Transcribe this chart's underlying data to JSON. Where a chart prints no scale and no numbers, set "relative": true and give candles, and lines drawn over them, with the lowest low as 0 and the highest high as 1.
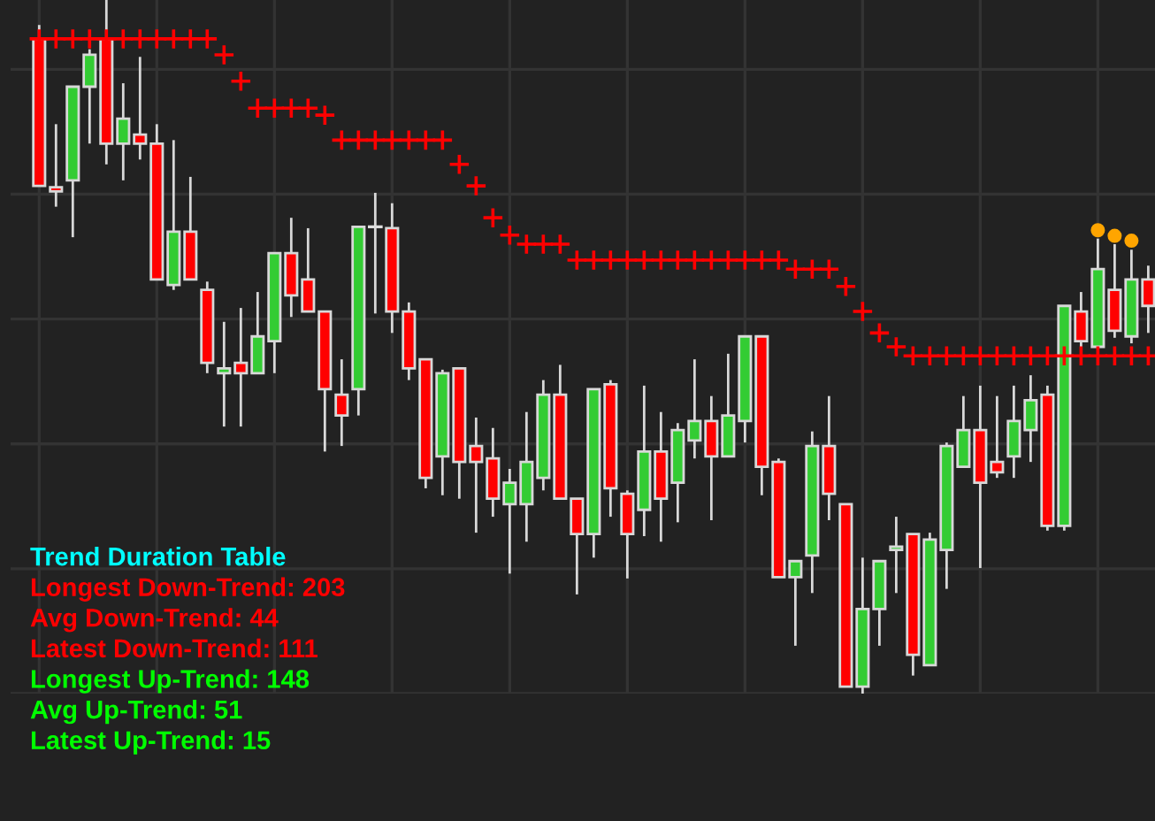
{
  "chart_data": {
    "type": "candlestick",
    "relative": true,
    "grid": true,
    "title": "Trend Duration Table",
    "categories": [
      null,
      null,
      null,
      null,
      null,
      null,
      null,
      null,
      null,
      null,
      null,
      null,
      null,
      null,
      null,
      null,
      null,
      null,
      null,
      null,
      null,
      null,
      null,
      null,
      null,
      null,
      null,
      null,
      null,
      null,
      null,
      null,
      null,
      null,
      null,
      null,
      null,
      null,
      null,
      null,
      null,
      null,
      null,
      null,
      null,
      null,
      null,
      null,
      null,
      null,
      null,
      null,
      null,
      null,
      null,
      null,
      null,
      null,
      null,
      null,
      null,
      null,
      null,
      null,
      null,
      null,
      null
    ],
    "ohlc": [
      [
        0.944,
        0.964,
        0.732,
        0.732
      ],
      [
        0.73,
        0.821,
        0.702,
        0.724
      ],
      [
        0.74,
        0.875,
        0.658,
        0.875
      ],
      [
        0.875,
        0.929,
        0.793,
        0.921
      ],
      [
        0.944,
        1,
        0.763,
        0.793
      ],
      [
        0.793,
        0.88,
        0.74,
        0.829
      ],
      [
        0.806,
        0.918,
        0.77,
        0.793
      ],
      [
        0.793,
        0.821,
        0.597,
        0.597
      ],
      [
        0.589,
        0.798,
        0.582,
        0.666
      ],
      [
        0.666,
        0.745,
        0.597,
        0.597
      ],
      [
        0.582,
        0.594,
        0.462,
        0.477
      ],
      [
        0.462,
        0.536,
        0.385,
        0.469
      ],
      [
        0.477,
        0.556,
        0.385,
        0.462
      ],
      [
        0.462,
        0.579,
        0.462,
        0.515
      ],
      [
        0.508,
        0.635,
        0.462,
        0.635
      ],
      [
        0.635,
        0.686,
        0.543,
        0.574
      ],
      [
        0.597,
        0.671,
        0.551,
        0.551
      ],
      [
        0.551,
        0.551,
        0.349,
        0.439
      ],
      [
        0.431,
        0.482,
        0.357,
        0.401
      ],
      [
        0.439,
        0.673,
        0.401,
        0.673
      ],
      [
        0.673,
        0.722,
        0.548,
        0.673
      ],
      [
        0.671,
        0.707,
        0.52,
        0.551
      ],
      [
        0.551,
        0.564,
        0.452,
        0.469
      ],
      [
        0.482,
        0.482,
        0.296,
        0.311
      ],
      [
        0.342,
        0.467,
        0.286,
        0.462
      ],
      [
        0.469,
        0.469,
        0.281,
        0.334
      ],
      [
        0.357,
        0.398,
        0.232,
        0.334
      ],
      [
        0.339,
        0.383,
        0.255,
        0.281
      ],
      [
        0.273,
        0.324,
        0.173,
        0.304
      ],
      [
        0.273,
        0.406,
        0.219,
        0.334
      ],
      [
        0.311,
        0.452,
        0.293,
        0.431
      ],
      [
        0.431,
        0.474,
        0.281,
        0.281
      ],
      [
        0.281,
        0.281,
        0.143,
        0.23
      ],
      [
        0.23,
        0.439,
        0.196,
        0.439
      ],
      [
        0.446,
        0.452,
        0.255,
        0.296
      ],
      [
        0.288,
        0.293,
        0.166,
        0.23
      ],
      [
        0.265,
        0.444,
        0.227,
        0.349
      ],
      [
        0.349,
        0.406,
        0.219,
        0.281
      ],
      [
        0.304,
        0.39,
        0.247,
        0.38
      ],
      [
        0.365,
        0.482,
        0.339,
        0.393
      ],
      [
        0.393,
        0.429,
        0.25,
        0.342
      ],
      [
        0.342,
        0.49,
        0.342,
        0.401
      ],
      [
        0.393,
        0.515,
        0.362,
        0.515
      ],
      [
        0.515,
        0.515,
        0.286,
        0.327
      ],
      [
        0.334,
        0.339,
        0.168,
        0.168
      ],
      [
        0.168,
        0.191,
        0.069,
        0.191
      ],
      [
        0.199,
        0.378,
        0.145,
        0.357
      ],
      [
        0.357,
        0.429,
        0.25,
        0.288
      ],
      [
        0.273,
        0.273,
        0.01,
        0.01
      ],
      [
        0.01,
        0.196,
        0,
        0.122
      ],
      [
        0.122,
        0.191,
        0.069,
        0.191
      ],
      [
        0.207,
        0.255,
        0.145,
        0.212
      ],
      [
        0.23,
        0.23,
        0.026,
        0.056
      ],
      [
        0.041,
        0.232,
        0.041,
        0.222
      ],
      [
        0.207,
        0.362,
        0.151,
        0.357
      ],
      [
        0.327,
        0.429,
        0.327,
        0.38
      ],
      [
        0.38,
        0.444,
        0.181,
        0.304
      ],
      [
        0.334,
        0.429,
        0.311,
        0.319
      ],
      [
        0.342,
        0.444,
        0.311,
        0.393
      ],
      [
        0.38,
        0.459,
        0.334,
        0.423
      ],
      [
        0.431,
        0.444,
        0.235,
        0.242
      ],
      [
        0.242,
        0.559,
        0.235,
        0.559
      ],
      [
        0.551,
        0.579,
        0.497,
        0.508
      ],
      [
        0.5,
        0.656,
        0.5,
        0.612
      ],
      [
        0.582,
        0.648,
        0.513,
        0.523
      ],
      [
        0.515,
        0.64,
        0.505,
        0.597
      ],
      [
        0.597,
        0.617,
        0.52,
        0.559
      ]
    ],
    "colors": [
      "#ff0000",
      "#ff0000",
      "#33cc33",
      "#33cc33",
      "#ff0000",
      "#33cc33",
      "#ff0000",
      "#ff0000",
      "#33cc33",
      "#ff0000",
      "#ff0000",
      "#33cc33",
      "#ff0000",
      "#33cc33",
      "#33cc33",
      "#ff0000",
      "#ff0000",
      "#ff0000",
      "#ff0000",
      "#33cc33",
      "#dddddd",
      "#ff0000",
      "#ff0000",
      "#ff0000",
      "#33cc33",
      "#ff0000",
      "#ff0000",
      "#ff0000",
      "#33cc33",
      "#33cc33",
      "#33cc33",
      "#ff0000",
      "#ff0000",
      "#33cc33",
      "#ff0000",
      "#ff0000",
      "#33cc33",
      "#ff0000",
      "#33cc33",
      "#33cc33",
      "#ff0000",
      "#33cc33",
      "#33cc33",
      "#ff0000",
      "#ff0000",
      "#33cc33",
      "#33cc33",
      "#ff0000",
      "#ff0000",
      "#33cc33",
      "#33cc33",
      "#33cc33",
      "#ff0000",
      "#33cc33",
      "#33cc33",
      "#33cc33",
      "#ff0000",
      "#ff0000",
      "#33cc33",
      "#33cc33",
      "#ff0000",
      "#33cc33",
      "#ff0000",
      "#33cc33",
      "#ff0000",
      "#33cc33",
      "#ff0000"
    ],
    "series": [
      {
        "type": "scatter",
        "marker": "cross",
        "color": "#ff0000",
        "values": [
          0.944,
          0.944,
          0.944,
          0.944,
          0.944,
          0.944,
          0.944,
          0.944,
          0.944,
          0.944,
          0.944,
          0.921,
          0.883,
          0.844,
          0.844,
          0.844,
          0.844,
          0.834,
          0.798,
          0.798,
          0.798,
          0.798,
          0.798,
          0.798,
          0.798,
          0.763,
          0.732,
          0.686,
          0.661,
          0.648,
          0.648,
          0.648,
          0.625,
          0.625,
          0.625,
          0.625,
          0.625,
          0.625,
          0.625,
          0.625,
          0.625,
          0.625,
          0.625,
          0.625,
          0.625,
          0.612,
          0.612,
          0.612,
          0.587,
          0.551,
          0.52,
          0.5,
          0.487,
          0.487,
          0.487,
          0.487,
          0.487,
          0.487,
          0.487,
          0.487,
          0.487,
          0.487,
          0.487,
          0.487,
          0.487,
          0.487,
          0.487
        ]
      },
      {
        "type": "scatter",
        "marker": "circle",
        "color": "#ffa500",
        "values": [
          null,
          null,
          null,
          null,
          null,
          null,
          null,
          null,
          null,
          null,
          null,
          null,
          null,
          null,
          null,
          null,
          null,
          null,
          null,
          null,
          null,
          null,
          null,
          null,
          null,
          null,
          null,
          null,
          null,
          null,
          null,
          null,
          null,
          null,
          null,
          null,
          null,
          null,
          null,
          null,
          null,
          null,
          null,
          null,
          null,
          null,
          null,
          null,
          null,
          null,
          null,
          null,
          null,
          null,
          null,
          null,
          null,
          null,
          null,
          null,
          null,
          null,
          null,
          0.668,
          0.66,
          0.653,
          null
        ]
      }
    ],
    "annotations": [
      "Longest Down-Trend: 203",
      "Avg Down-Trend: 44",
      "Latest Down-Trend: 111",
      "Longest Up-Trend: 148",
      "Avg Up-Trend: 51",
      "Latest Up-Trend: 15"
    ]
  }
}
